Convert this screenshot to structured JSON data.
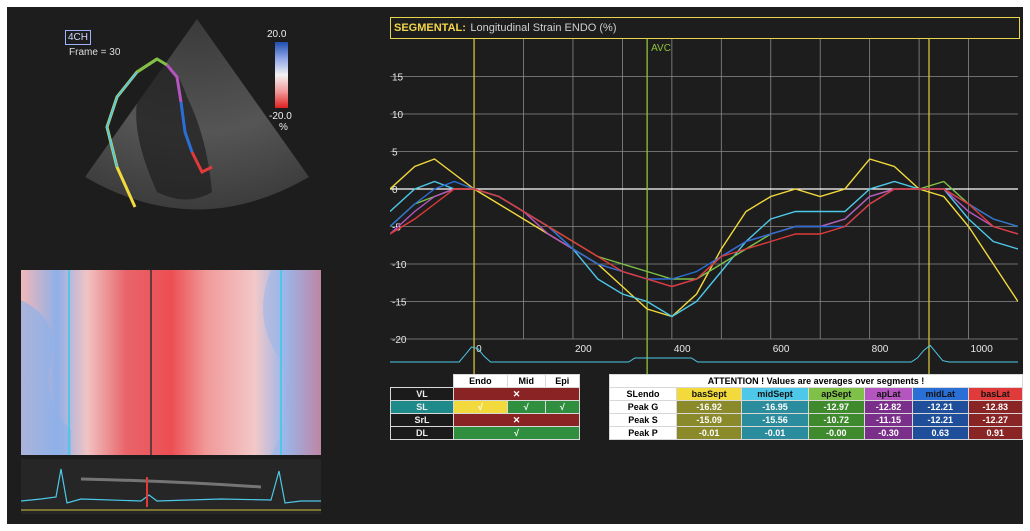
{
  "echo": {
    "view_label": "4CH",
    "frame_text": "Frame = 30",
    "colorbar_max": "20.0",
    "colorbar_min": "-20.0",
    "colorbar_unit": "%"
  },
  "plot": {
    "title_prefix": "SEGMENTAL:",
    "title_rest": "Longitudinal Strain ENDO (%)",
    "avc_label": "AVC",
    "y_ticks": [
      "15",
      "10",
      "5",
      "0",
      "-5",
      "-10",
      "-15",
      "-20"
    ],
    "x_ticks": [
      "0",
      "200",
      "400",
      "600",
      "800",
      "1000"
    ]
  },
  "chart_data": {
    "type": "line",
    "title": "SEGMENTAL: Longitudinal Strain ENDO (%)",
    "xlabel": "",
    "ylabel": "",
    "xlim": [
      -170,
      1100
    ],
    "ylim": [
      -20,
      20
    ],
    "markers": {
      "avc_x": 350,
      "ecg_start_x": 0,
      "ecg_end_x": 920
    },
    "series": [
      {
        "name": "basSept",
        "color": "#f2d93c",
        "x": [
          -170,
          -120,
          -80,
          -40,
          0,
          50,
          100,
          150,
          200,
          250,
          300,
          350,
          400,
          450,
          500,
          550,
          600,
          650,
          700,
          750,
          800,
          850,
          900,
          950,
          1000,
          1050,
          1100
        ],
        "y": [
          0,
          3,
          4,
          2,
          0,
          -2,
          -4,
          -6,
          -8,
          -10,
          -13,
          -16,
          -17,
          -14,
          -8,
          -3,
          -1,
          0,
          -1,
          0,
          4,
          3,
          0,
          -1,
          -5,
          -10,
          -15
        ]
      },
      {
        "name": "midSept",
        "color": "#4dc8e8",
        "x": [
          -170,
          -120,
          -80,
          -40,
          0,
          50,
          100,
          150,
          200,
          250,
          300,
          350,
          400,
          450,
          500,
          550,
          600,
          650,
          700,
          750,
          800,
          850,
          900,
          950,
          1000,
          1050,
          1100
        ],
        "y": [
          -3,
          0,
          1,
          0,
          0,
          -1,
          -3,
          -5,
          -8,
          -12,
          -14,
          -15,
          -17,
          -15,
          -11,
          -7,
          -4,
          -3,
          -3,
          -3,
          0,
          1,
          0,
          0,
          -4,
          -7,
          -8
        ]
      },
      {
        "name": "apSept",
        "color": "#7fc148",
        "x": [
          -170,
          -120,
          -80,
          -40,
          0,
          50,
          100,
          150,
          200,
          250,
          300,
          350,
          400,
          450,
          500,
          550,
          600,
          650,
          700,
          750,
          800,
          850,
          900,
          950,
          1000,
          1050,
          1100
        ],
        "y": [
          -5,
          -2,
          -1,
          0,
          0,
          -1,
          -3,
          -5,
          -7,
          -9,
          -10,
          -11,
          -12,
          -12,
          -10,
          -8,
          -6,
          -5,
          -5,
          -4,
          -1,
          0,
          0,
          1,
          -2,
          -4,
          -5
        ]
      },
      {
        "name": "apLat",
        "color": "#b455c0",
        "x": [
          -170,
          -120,
          -80,
          -40,
          0,
          50,
          100,
          150,
          200,
          250,
          300,
          350,
          400,
          450,
          500,
          550,
          600,
          650,
          700,
          750,
          800,
          850,
          900,
          950,
          1000,
          1050,
          1100
        ],
        "y": [
          -6,
          -3,
          -1,
          0,
          0,
          -1,
          -3,
          -6,
          -8,
          -10,
          -11,
          -12,
          -13,
          -12,
          -9,
          -7,
          -6,
          -5,
          -5,
          -4,
          -1,
          0,
          0,
          0,
          -3,
          -5,
          -6
        ]
      },
      {
        "name": "midLat",
        "color": "#2a6fd6",
        "x": [
          -170,
          -120,
          -80,
          -40,
          0,
          50,
          100,
          150,
          200,
          250,
          300,
          350,
          400,
          450,
          500,
          550,
          600,
          650,
          700,
          750,
          800,
          850,
          900,
          950,
          1000,
          1050,
          1100
        ],
        "y": [
          -5,
          -2,
          0,
          1,
          0,
          -1,
          -3,
          -5,
          -8,
          -10,
          -11,
          -12,
          -12,
          -11,
          -9,
          -7,
          -6,
          -5,
          -5,
          -5,
          -2,
          0,
          0,
          0,
          -2,
          -4,
          -5
        ]
      },
      {
        "name": "basLat",
        "color": "#e03a3a",
        "x": [
          -170,
          -120,
          -80,
          -40,
          0,
          50,
          100,
          150,
          200,
          250,
          300,
          350,
          400,
          450,
          500,
          550,
          600,
          650,
          700,
          750,
          800,
          850,
          900,
          950,
          1000,
          1050,
          1100
        ],
        "y": [
          -6,
          -4,
          -2,
          0,
          0,
          -1,
          -3,
          -5,
          -7,
          -9,
          -11,
          -12,
          -13,
          -12,
          -9,
          -8,
          -7,
          -6,
          -6,
          -5,
          -2,
          0,
          0,
          0,
          -2,
          -5,
          -6
        ]
      }
    ]
  },
  "method_table": {
    "cols": [
      "Endo",
      "Mid",
      "Epi"
    ],
    "rows": [
      {
        "label": "VL",
        "type": "merged",
        "mark": "✕",
        "bg": "#8a2323"
      },
      {
        "label": "SL",
        "type": "split",
        "marks": [
          "√",
          "√",
          "√"
        ],
        "bgs": [
          "#f2d93c",
          "#2f8f3f",
          "#2f8f3f"
        ],
        "label_bg": "#1e8a8a"
      },
      {
        "label": "SrL",
        "type": "merged",
        "mark": "✕",
        "bg": "#8a2323"
      },
      {
        "label": "DL",
        "type": "merged",
        "mark": "√",
        "bg": "#2f8f3f"
      }
    ]
  },
  "values_table": {
    "banner": "ATTENTION !   Values  are  averages  over  segments !",
    "corner": "SLendo",
    "headers": [
      "basSept",
      "midSept",
      "apSept",
      "apLat",
      "midLat",
      "basLat"
    ],
    "header_colors": [
      "#f2d93c",
      "#4dc8e8",
      "#7fc148",
      "#b455c0",
      "#2a6fd6",
      "#e03a3a"
    ],
    "cell_colors": [
      "#8a8a2a",
      "#2a8c9c",
      "#3f8a2c",
      "#7a2f8a",
      "#1f4f9a",
      "#8a2525"
    ],
    "rows": [
      {
        "label": "Peak G",
        "values": [
          "-16.92",
          "-16.95",
          "-12.97",
          "-12.82",
          "-12.21",
          "-12.83"
        ]
      },
      {
        "label": "Peak S",
        "values": [
          "-15.09",
          "-15.56",
          "-10.72",
          "-11.15",
          "-12.21",
          "-12.27"
        ]
      },
      {
        "label": "Peak P",
        "values": [
          "-0.01",
          "-0.01",
          "-0.00",
          "-0.30",
          "0.63",
          "0.91"
        ]
      }
    ]
  }
}
